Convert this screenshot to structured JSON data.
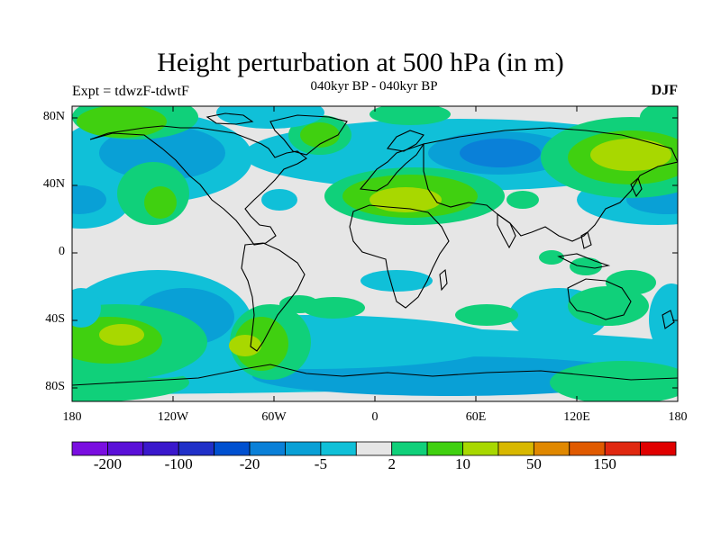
{
  "title": "Height perturbation at 500 hPa (in m)",
  "left_label": "Expt = tdwzF-tdwtF",
  "center_label": "040kyr BP - 040kyr BP",
  "right_label": "DJF",
  "y_ticks": [
    "80N",
    "40N",
    "0",
    "40S",
    "80S"
  ],
  "x_ticks": [
    "180",
    "120W",
    "60W",
    "0",
    "60E",
    "120E",
    "180"
  ],
  "colorbar": {
    "colors": [
      "#7a0ee0",
      "#5a10d8",
      "#3a18cc",
      "#2030c8",
      "#0050d0",
      "#0a80d8",
      "#09a0d6",
      "#10c0d8",
      "#e6e6e6",
      "#10d07a",
      "#40d010",
      "#a8d800",
      "#d8b800",
      "#e08800",
      "#e05a00",
      "#e02810",
      "#e00000"
    ],
    "labels": [
      "-200",
      "-100",
      "-20",
      "-5",
      "2",
      "10",
      "50",
      "150"
    ]
  },
  "field_colors": {
    "background": "#e6e6e6",
    "neg1": "#10c0d8",
    "neg2": "#09a0d6",
    "neg3": "#0a80d8",
    "pos1": "#10d07a",
    "pos2": "#40d010",
    "pos3": "#a8d800",
    "pos4": "#d8b800"
  }
}
